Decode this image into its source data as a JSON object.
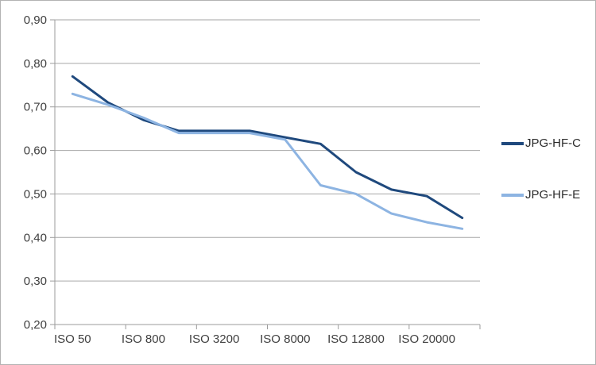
{
  "chart_data": {
    "type": "line",
    "num_points": 12,
    "x_tick_labels": [
      "ISO 50",
      "ISO 800",
      "ISO 3200",
      "ISO 8000",
      "ISO 12800",
      "ISO 20000"
    ],
    "x_label_every": 2,
    "series": [
      {
        "name": "JPG-HF-C",
        "color": "#1F497D",
        "values": [
          0.77,
          0.71,
          0.67,
          0.645,
          0.645,
          0.645,
          0.63,
          0.615,
          0.55,
          0.51,
          0.495,
          0.445
        ]
      },
      {
        "name": "JPG-HF-E",
        "color": "#8DB4E2",
        "values": [
          0.73,
          0.705,
          0.675,
          0.64,
          0.64,
          0.64,
          0.625,
          0.52,
          0.5,
          0.455,
          0.435,
          0.42
        ]
      }
    ],
    "ylim": [
      0.2,
      0.9
    ],
    "y_step": 0.1,
    "y_ticks": [
      {
        "label": "0,90",
        "value": 0.9
      },
      {
        "label": "0,80",
        "value": 0.8
      },
      {
        "label": "0,70",
        "value": 0.7
      },
      {
        "label": "0,60",
        "value": 0.6
      },
      {
        "label": "0,50",
        "value": 0.5
      },
      {
        "label": "0,40",
        "value": 0.4
      },
      {
        "label": "0,30",
        "value": 0.3
      },
      {
        "label": "0,20",
        "value": 0.2
      }
    ],
    "grid": true,
    "legend_position": "right",
    "title": "",
    "xlabel": "",
    "ylabel": ""
  },
  "colors": {
    "gridline": "#A6A6A6",
    "axis": "#9B9B9B",
    "tick_text": "#3F3F3F",
    "frame_border": "#B3B3B3",
    "background": "#FFFFFF"
  }
}
